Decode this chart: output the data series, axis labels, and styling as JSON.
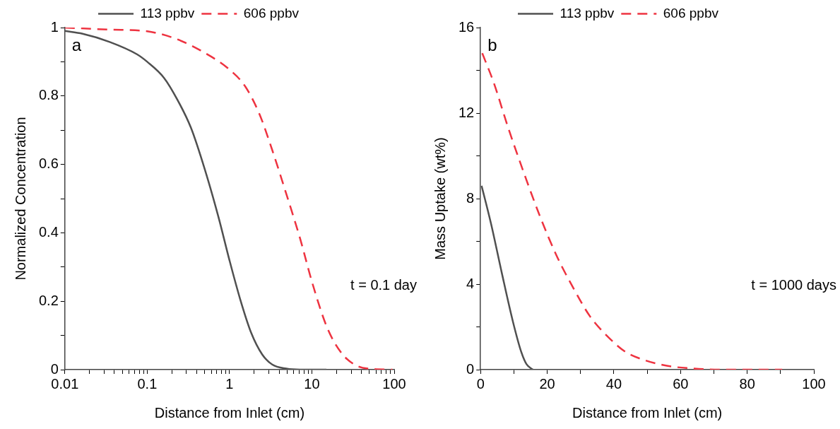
{
  "chart_data": [
    {
      "type": "line",
      "xlabel": "Distance from Inlet (cm)",
      "ylabel": "Normalized Concentration",
      "log": "x",
      "xlim": [
        0.01,
        100
      ],
      "ylim": [
        0,
        1
      ],
      "xticks": [
        0.01,
        {
          "value": 0.02,
          "label": null
        },
        {
          "value": 0.03,
          "label": null
        },
        {
          "value": 0.04,
          "label": null
        },
        {
          "value": 0.05,
          "label": null
        },
        {
          "value": 0.06,
          "label": null
        },
        {
          "value": 0.07,
          "label": null
        },
        {
          "value": 0.08,
          "label": null
        },
        {
          "value": 0.09,
          "label": null
        },
        0.1,
        {
          "value": 0.2,
          "label": null
        },
        {
          "value": 0.3,
          "label": null
        },
        {
          "value": 0.4,
          "label": null
        },
        {
          "value": 0.5,
          "label": null
        },
        {
          "value": 0.6,
          "label": null
        },
        {
          "value": 0.7,
          "label": null
        },
        {
          "value": 0.8,
          "label": null
        },
        {
          "value": 0.9,
          "label": null
        },
        1,
        {
          "value": 2,
          "label": null
        },
        {
          "value": 3,
          "label": null
        },
        {
          "value": 4,
          "label": null
        },
        {
          "value": 5,
          "label": null
        },
        {
          "value": 6,
          "label": null
        },
        {
          "value": 7,
          "label": null
        },
        {
          "value": 8,
          "label": null
        },
        {
          "value": 9,
          "label": null
        },
        10,
        {
          "value": 20,
          "label": null
        },
        {
          "value": 30,
          "label": null
        },
        {
          "value": 40,
          "label": null
        },
        {
          "value": 50,
          "label": null
        },
        {
          "value": 60,
          "label": null
        },
        {
          "value": 70,
          "label": null
        },
        {
          "value": 80,
          "label": null
        },
        {
          "value": 90,
          "label": null
        },
        100
      ],
      "yticks": [
        0,
        {
          "value": 0.1,
          "label": null
        },
        0.2,
        {
          "value": 0.3,
          "label": null
        },
        0.4,
        {
          "value": 0.5,
          "label": null
        },
        0.6,
        {
          "value": 0.7,
          "label": null
        },
        0.8,
        {
          "value": 0.9,
          "label": null
        },
        1
      ],
      "grid": false,
      "legend": "top",
      "marker": "none",
      "annotations": [
        "a",
        "t = 0.1 day"
      ],
      "series": [
        {
          "name": "113 ppbv",
          "color": "#505050",
          "line_style": "solid",
          "x": [
            0.01,
            0.0164,
            0.035,
            0.075,
            0.1,
            0.16,
            0.234,
            0.34,
            0.5,
            0.73,
            1.0,
            1.35,
            1.83,
            2.5,
            3.3,
            4.9,
            7.2,
            15
          ],
          "values": [
            0.99,
            0.982,
            0.958,
            0.922,
            0.9,
            0.853,
            0.788,
            0.707,
            0.586,
            0.448,
            0.319,
            0.205,
            0.108,
            0.044,
            0.015,
            0.003,
            0,
            0
          ]
        },
        {
          "name": "606 ppbv",
          "color": "#ee3340",
          "line_style": "dashed",
          "x": [
            0.01,
            0.035,
            0.1,
            0.23,
            0.5,
            1,
            1.55,
            2.3,
            3.3,
            4.9,
            7.2,
            10.1,
            15.2,
            22.3,
            32.8,
            48,
            95
          ],
          "values": [
            1,
            0.994,
            0.989,
            0.966,
            0.926,
            0.877,
            0.828,
            0.748,
            0.642,
            0.513,
            0.383,
            0.254,
            0.125,
            0.052,
            0.015,
            0.003,
            0
          ]
        }
      ]
    },
    {
      "type": "line",
      "xlabel": "Distance from Inlet (cm)",
      "ylabel": "Mass Uptake (wt%)",
      "xlim": [
        0,
        100
      ],
      "ylim": [
        0,
        16
      ],
      "xticks": [
        0,
        {
          "value": 10,
          "label": null
        },
        20,
        {
          "value": 30,
          "label": null
        },
        40,
        {
          "value": 50,
          "label": null
        },
        60,
        {
          "value": 70,
          "label": null
        },
        80,
        {
          "value": 90,
          "label": null
        },
        100
      ],
      "yticks": [
        0,
        {
          "value": 2,
          "label": null
        },
        4,
        {
          "value": 6,
          "label": null
        },
        8,
        {
          "value": 10,
          "label": null
        },
        12,
        {
          "value": 14,
          "label": null
        },
        16
      ],
      "grid": false,
      "legend": "top",
      "marker": "none",
      "annotations": [
        "b",
        "t = 1000 days"
      ],
      "series": [
        {
          "name": "113 ppbv",
          "color": "#505050",
          "line_style": "solid",
          "x": [
            0.3,
            3.1,
            6.4,
            9.7,
            12.2,
            13.8,
            15.7
          ],
          "values": [
            8.6,
            6.85,
            4.5,
            2.25,
            0.83,
            0.25,
            0
          ]
        },
        {
          "name": "606 ppbv",
          "color": "#ee3340",
          "line_style": "dashed",
          "x": [
            0.5,
            4,
            8.1,
            13,
            18,
            22.9,
            27.9,
            32.8,
            37.8,
            43.5,
            49.3,
            55.9,
            64.1,
            72.4,
            90.5
          ],
          "values": [
            14.8,
            13.4,
            11.4,
            9.2,
            7.1,
            5.3,
            3.8,
            2.5,
            1.6,
            0.83,
            0.44,
            0.18,
            0.05,
            0,
            0
          ]
        }
      ]
    }
  ]
}
